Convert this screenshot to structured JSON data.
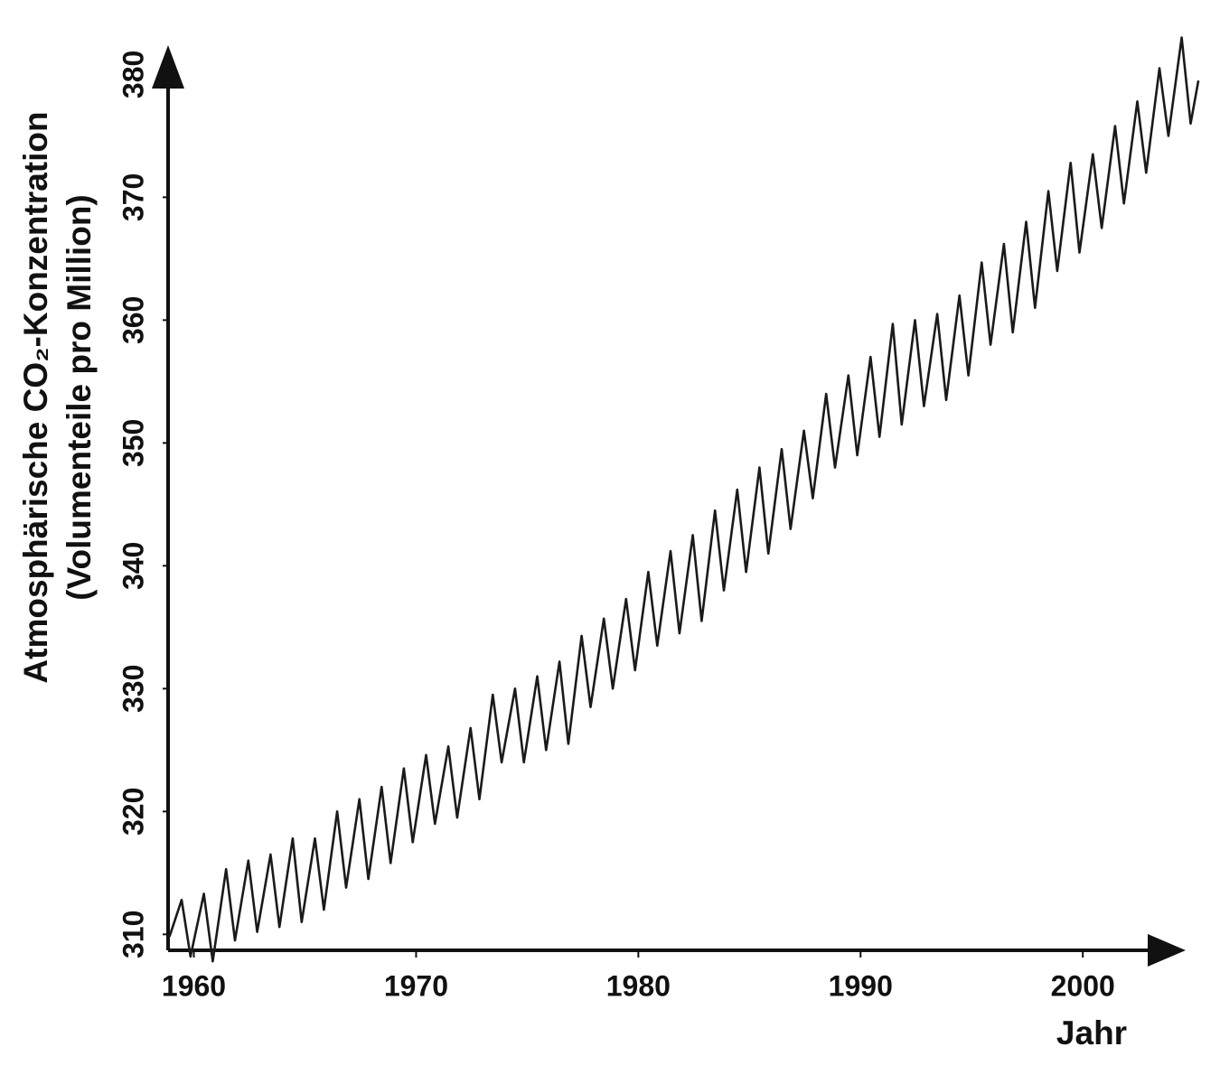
{
  "chart_data": {
    "type": "line",
    "y_label": [
      "Atmosphärische CO₂-Konzentration",
      "(Volumenteile pro Million)"
    ],
    "x_label": "Jahr",
    "color": "#1a1a1a",
    "xlim": [
      1958.8,
      2005.4
    ],
    "ylim": [
      308.7,
      384
    ],
    "xticks": [
      1960,
      1970,
      1980,
      1990,
      2000
    ],
    "yticks": [
      310,
      320,
      330,
      340,
      350,
      360,
      370,
      380
    ],
    "x": [
      1958.9,
      1959.45,
      1959.85,
      1960.45,
      1960.85,
      1961.45,
      1961.85,
      1962.45,
      1962.85,
      1963.45,
      1963.85,
      1964.45,
      1964.85,
      1965.45,
      1965.85,
      1966.45,
      1966.85,
      1967.45,
      1967.85,
      1968.45,
      1968.85,
      1969.45,
      1969.85,
      1970.45,
      1970.85,
      1971.45,
      1971.85,
      1972.45,
      1972.85,
      1973.45,
      1973.85,
      1974.45,
      1974.85,
      1975.45,
      1975.85,
      1976.45,
      1976.85,
      1977.45,
      1977.85,
      1978.45,
      1978.85,
      1979.45,
      1979.85,
      1980.45,
      1980.85,
      1981.45,
      1981.85,
      1982.45,
      1982.85,
      1983.45,
      1983.85,
      1984.45,
      1984.85,
      1985.45,
      1985.85,
      1986.45,
      1986.85,
      1987.45,
      1987.85,
      1988.45,
      1988.85,
      1989.45,
      1989.85,
      1990.45,
      1990.85,
      1991.45,
      1991.85,
      1992.45,
      1992.85,
      1993.45,
      1993.85,
      1994.45,
      1994.85,
      1995.45,
      1995.85,
      1996.45,
      1996.85,
      1997.45,
      1997.85,
      1998.45,
      1998.85,
      1999.45,
      1999.85,
      2000.45,
      2000.85,
      2001.45,
      2001.85,
      2002.45,
      2002.85,
      2003.45,
      2003.85,
      2004.45,
      2004.85,
      2005.2
    ],
    "values": [
      309.8,
      312.8,
      308.2,
      313.3,
      307.8,
      315.3,
      309.5,
      316.0,
      310.2,
      316.5,
      310.6,
      317.8,
      311.0,
      317.8,
      312.0,
      320.0,
      313.8,
      321.0,
      314.5,
      322.0,
      315.8,
      323.5,
      317.5,
      324.6,
      319.0,
      325.3,
      319.5,
      326.8,
      321.0,
      329.5,
      324.0,
      330.0,
      324.0,
      331.0,
      325.0,
      332.2,
      325.5,
      334.3,
      328.5,
      335.7,
      330.0,
      337.3,
      331.5,
      339.5,
      333.5,
      341.2,
      334.5,
      342.5,
      335.5,
      344.5,
      338.0,
      346.2,
      339.5,
      348.0,
      341.0,
      349.5,
      343.0,
      351.0,
      345.5,
      354.0,
      348.0,
      355.5,
      349.0,
      357.0,
      350.5,
      359.7,
      351.5,
      360.0,
      353.0,
      360.5,
      353.5,
      362.0,
      355.5,
      364.7,
      358.0,
      366.2,
      359.0,
      368.0,
      361.0,
      370.5,
      364.0,
      372.8,
      365.5,
      373.5,
      367.5,
      375.8,
      369.5,
      377.8,
      372.0,
      380.5,
      375.0,
      383.0,
      376.0,
      379.5
    ]
  }
}
